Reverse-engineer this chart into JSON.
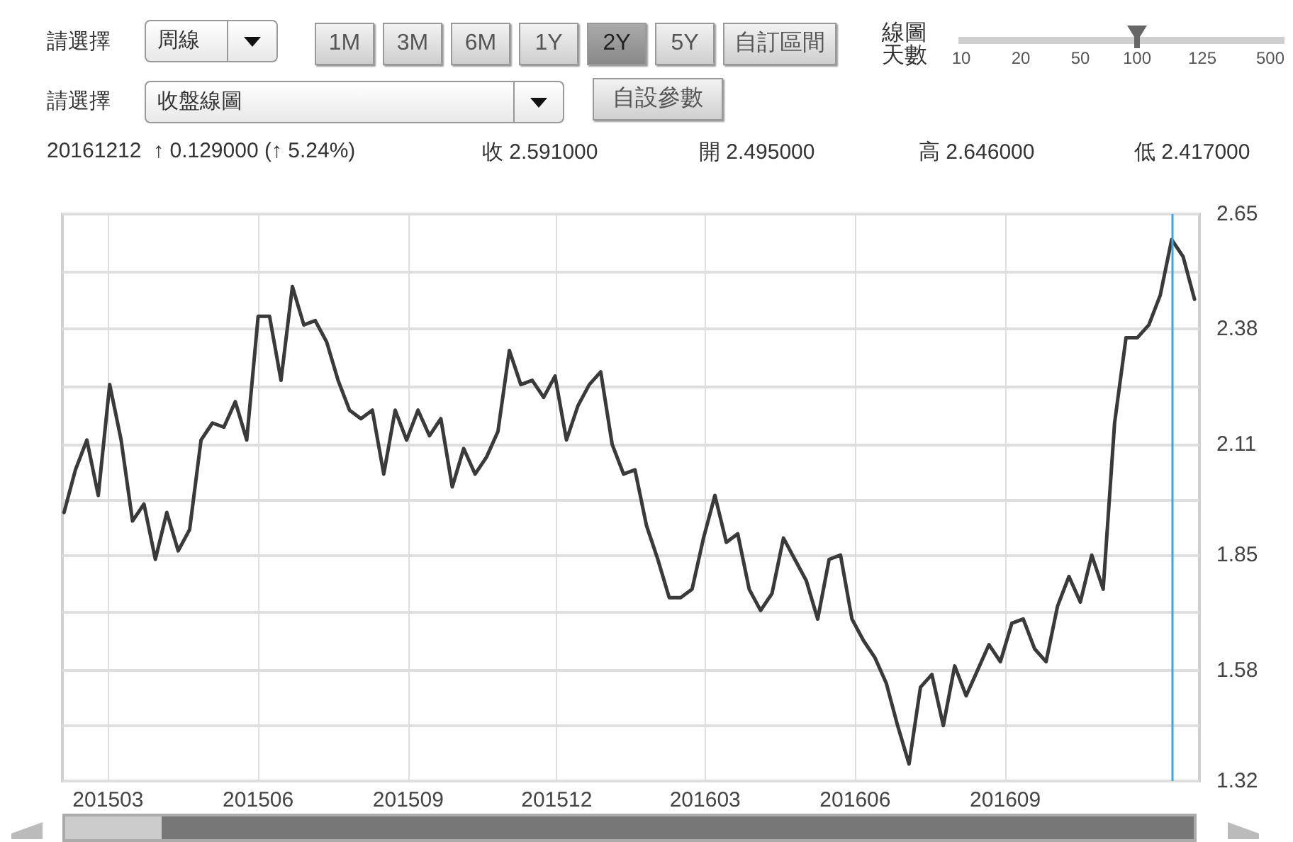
{
  "chart_data": {
    "type": "line",
    "annotations": [
      "請選擇",
      "周線",
      "1M",
      "3M",
      "6M",
      "1Y",
      "2Y",
      "5Y",
      "自訂區間",
      "線圖天數",
      "10",
      "20",
      "50",
      "100",
      "125",
      "500",
      "請選擇",
      "收盤線圖",
      "自設參數",
      "20161212  ↑ 0.129000 (↑ 5.24%)",
      "收 2.591000",
      "開 2.495000",
      "高 2.646000",
      "低 2.417000"
    ],
    "x": [
      "2015-02-02",
      "2015-02-09",
      "2015-02-16",
      "2015-02-23",
      "2015-03-02",
      "2015-03-09",
      "2015-03-16",
      "2015-03-23",
      "2015-03-30",
      "2015-04-06",
      "2015-04-13",
      "2015-04-20",
      "2015-04-27",
      "2015-05-04",
      "2015-05-11",
      "2015-05-18",
      "2015-05-25",
      "2015-06-01",
      "2015-06-08",
      "2015-06-15",
      "2015-06-22",
      "2015-06-29",
      "2015-07-06",
      "2015-07-13",
      "2015-07-20",
      "2015-07-27",
      "2015-08-03",
      "2015-08-10",
      "2015-08-17",
      "2015-08-24",
      "2015-08-31",
      "2015-09-07",
      "2015-09-14",
      "2015-09-21",
      "2015-09-28",
      "2015-10-05",
      "2015-10-12",
      "2015-10-19",
      "2015-10-26",
      "2015-11-02",
      "2015-11-09",
      "2015-11-16",
      "2015-11-23",
      "2015-11-30",
      "2015-12-07",
      "2015-12-14",
      "2015-12-21",
      "2015-12-28",
      "2016-01-04",
      "2016-01-11",
      "2016-01-18",
      "2016-01-25",
      "2016-02-01",
      "2016-02-08",
      "2016-02-15",
      "2016-02-22",
      "2016-02-29",
      "2016-03-07",
      "2016-03-14",
      "2016-03-21",
      "2016-03-28",
      "2016-04-04",
      "2016-04-11",
      "2016-04-18",
      "2016-04-25",
      "2016-05-02",
      "2016-05-09",
      "2016-05-16",
      "2016-05-23",
      "2016-05-30",
      "2016-06-06",
      "2016-06-13",
      "2016-06-20",
      "2016-06-27",
      "2016-07-04",
      "2016-07-11",
      "2016-07-18",
      "2016-07-25",
      "2016-08-01",
      "2016-08-08",
      "2016-08-15",
      "2016-08-22",
      "2016-08-29",
      "2016-09-05",
      "2016-09-12",
      "2016-09-19",
      "2016-09-26",
      "2016-10-03",
      "2016-10-10",
      "2016-10-17",
      "2016-10-24",
      "2016-10-31",
      "2016-11-07",
      "2016-11-14",
      "2016-11-21",
      "2016-11-28",
      "2016-12-05",
      "2016-12-12",
      "2016-12-19",
      "2016-12-26"
    ],
    "series": [
      {
        "color": "#3a3a3a",
        "values": [
          1.95,
          2.05,
          2.12,
          1.99,
          2.25,
          2.12,
          1.93,
          1.97,
          1.84,
          1.95,
          1.86,
          1.91,
          2.12,
          2.16,
          2.15,
          2.21,
          2.12,
          2.41,
          2.41,
          2.26,
          2.48,
          2.39,
          2.4,
          2.35,
          2.26,
          2.19,
          2.17,
          2.19,
          2.04,
          2.19,
          2.12,
          2.19,
          2.13,
          2.17,
          2.01,
          2.1,
          2.04,
          2.08,
          2.14,
          2.33,
          2.25,
          2.26,
          2.22,
          2.27,
          2.12,
          2.2,
          2.25,
          2.28,
          2.11,
          2.04,
          2.05,
          1.92,
          1.84,
          1.75,
          1.75,
          1.77,
          1.89,
          1.99,
          1.88,
          1.9,
          1.77,
          1.72,
          1.76,
          1.89,
          1.84,
          1.79,
          1.7,
          1.84,
          1.85,
          1.7,
          1.65,
          1.61,
          1.55,
          1.45,
          1.36,
          1.54,
          1.57,
          1.45,
          1.59,
          1.52,
          1.58,
          1.64,
          1.6,
          1.69,
          1.7,
          1.63,
          1.6,
          1.73,
          1.8,
          1.74,
          1.85,
          1.77,
          2.16,
          2.36,
          2.36,
          2.39,
          2.46,
          2.59,
          2.55,
          2.45
        ]
      }
    ],
    "xlim": [
      "2015-02-01",
      "2016-12-29"
    ],
    "xticks": [
      {
        "value": "2015-03-01",
        "label": "201503"
      },
      {
        "value": "2015-06-01",
        "label": "201506"
      },
      {
        "value": "2015-09-01",
        "label": "201509"
      },
      {
        "value": "2015-12-01",
        "label": "201512"
      },
      {
        "value": "2016-03-01",
        "label": "201603"
      },
      {
        "value": "2016-06-01",
        "label": "201606"
      },
      {
        "value": "2016-09-01",
        "label": "201609"
      }
    ],
    "ylim": [
      1.32,
      2.65
    ],
    "yticks": [
      1.32,
      {
        "value": 1.45,
        "label": null
      },
      1.58,
      {
        "value": 1.715,
        "label": null
      },
      1.85,
      {
        "value": 1.98,
        "label": null
      },
      2.11,
      {
        "value": 2.245,
        "label": null
      },
      2.38,
      {
        "value": 2.515,
        "label": null
      },
      2.65
    ],
    "ref_lines": [
      {
        "axis": "x",
        "value": "2016-12-12",
        "color": "#3ba7e8"
      }
    ],
    "grid": true,
    "marker": "none",
    "line_style": "solid"
  }
}
